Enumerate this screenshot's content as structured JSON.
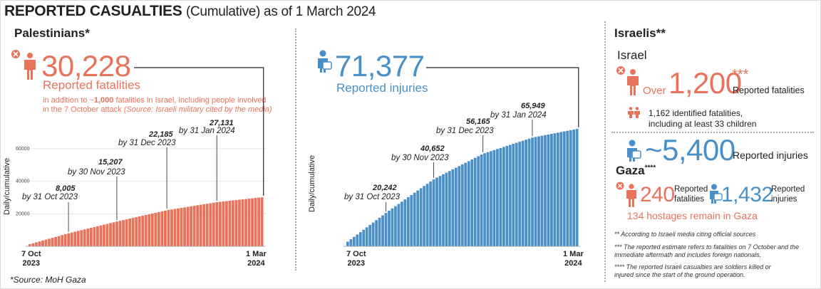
{
  "header": {
    "title_bold": "REPORTED CASUALTIES",
    "title_rest": "(Cumulative) as of 1 March 2024"
  },
  "palestinians": {
    "heading": "Palestinians*",
    "fatalities_value": "30,228",
    "fatalities_label": "Reported fatalities",
    "fatalities_note_a": "in addition to ~",
    "fatalities_note_bold": "1,000",
    "fatalities_note_b": " fatalities in Israel, including people involved",
    "fatalities_note_c": "in the 7 October attack ",
    "fatalities_note_source": "(Source: Israeli military cited by the media)",
    "injuries_value": "71,377",
    "injuries_label": "Reported injuries",
    "source": "*Source: MoH Gaza"
  },
  "israelis": {
    "heading": "Israelis**",
    "israel_heading": "Israel",
    "over": "Over",
    "fatalities_value": "1,200",
    "fatalities_stars": "***",
    "fatalities_label": "Reported fatalities",
    "identified_line1": "1,162 identified fatalities,",
    "identified_line2": "including at least 33 children",
    "injuries_value": "~5,400",
    "injuries_label": "Reported injuries",
    "gaza_heading": "Gaza",
    "gaza_stars": "****",
    "gaza_fatalities_value": "240",
    "gaza_fatalities_label1": "Reported",
    "gaza_fatalities_label2": "fatalities",
    "gaza_injuries_value": "1,432",
    "gaza_injuries_label1": "Reported",
    "gaza_injuries_label2": "injuries",
    "hostages": "134 hostages remain in Gaza",
    "footnote1": "** According to Israeli media citing official sources",
    "footnote2a": "*** The reported estimate refers to fatalities on 7 October and the",
    "footnote2b": "immediate aftermath and includes foreign nationals.",
    "footnote3a": "**** The reported Israeli casualties are soldiers killed or",
    "footnote3b": "injured since the start of the ground operation."
  },
  "colors": {
    "fatalities": "#e8735a",
    "injuries": "#4a90c8",
    "text": "#222222"
  },
  "icons": [
    "person-fatality-icon",
    "person-injury-icon",
    "two-persons-icon"
  ],
  "chart_data": [
    {
      "type": "bar",
      "name": "fatalities",
      "ylabel": "Daily/cumulative",
      "ylim": [
        0,
        70000
      ],
      "yticks": [
        "20000",
        "40000",
        "60000"
      ],
      "x_start": [
        "7 Oct",
        "2023"
      ],
      "x_end": [
        "1 Mar",
        "2024"
      ],
      "annotations": [
        {
          "value": "8,005",
          "label": "by 31 Oct 2023"
        },
        {
          "value": "15,207",
          "label": "by 30 Nov 2023"
        },
        {
          "value": "22,185",
          "label": "by 31 Dec 2023"
        },
        {
          "value": "27,131",
          "label": "by 31 Jan 2024"
        }
      ],
      "anchors": [
        [
          0,
          1300
        ],
        [
          24,
          8005
        ],
        [
          54,
          15207
        ],
        [
          85,
          22185
        ],
        [
          116,
          27131
        ],
        [
          145,
          30228
        ]
      ]
    },
    {
      "type": "bar",
      "name": "injuries",
      "ylabel": "Daily/cumulative",
      "ylim": [
        0,
        76000
      ],
      "x_start": [
        "7 Oct",
        "2023"
      ],
      "x_end": [
        "1 Mar",
        "2024"
      ],
      "annotations": [
        {
          "value": "20,242",
          "label": "by 31 Oct 2023"
        },
        {
          "value": "40,652",
          "label": "by 30 Nov 2023"
        },
        {
          "value": "56,165",
          "label": "by 31 Dec 2023"
        },
        {
          "value": "65,949",
          "label": "by 31 Jan 2024"
        }
      ],
      "anchors": [
        [
          0,
          2800
        ],
        [
          24,
          20242
        ],
        [
          54,
          40652
        ],
        [
          85,
          56165
        ],
        [
          116,
          65949
        ],
        [
          145,
          71377
        ]
      ]
    }
  ]
}
